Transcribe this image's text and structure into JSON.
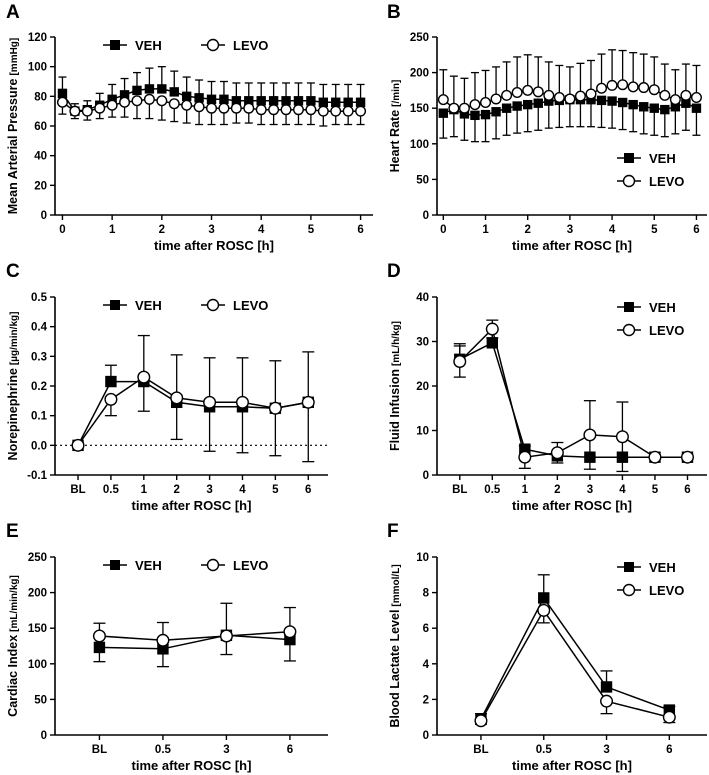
{
  "figure": {
    "colors": {
      "veh": "#000000",
      "levo": "#ffffff",
      "axis": "#000000"
    }
  },
  "chart_data": [
    {
      "panel": "A",
      "type": "line",
      "xlabel": "time after ROSC [h]",
      "ylabel": "Mean Arterial Pressure",
      "yunit": "[mmHg]",
      "ylim": [
        0,
        120
      ],
      "yticks": [
        "0",
        "20",
        "40",
        "60",
        "80",
        "100",
        "120"
      ],
      "xlim": [
        -0.15,
        6.25
      ],
      "xtick_labels": [
        "0",
        "1",
        "2",
        "3",
        "4",
        "5",
        "6"
      ],
      "legend": {
        "layout": "row",
        "position": "top",
        "entries": [
          "VEH",
          "LEVO"
        ]
      },
      "x": [
        0,
        0.25,
        0.5,
        0.75,
        1,
        1.25,
        1.5,
        1.75,
        2,
        2.25,
        2.5,
        2.75,
        3,
        3.25,
        3.5,
        3.75,
        4,
        4.25,
        4.5,
        4.75,
        5,
        5.25,
        5.5,
        5.75,
        6
      ],
      "series": [
        {
          "name": "VEH",
          "marker": "square",
          "err_dir": "up",
          "values": [
            82,
            70,
            71,
            74,
            78,
            81,
            84,
            85,
            85,
            83,
            80,
            79,
            78,
            78,
            77,
            77,
            77,
            77,
            77,
            77,
            77,
            76,
            76,
            76,
            76
          ],
          "errors": [
            11,
            5,
            6,
            8,
            10,
            11,
            12,
            14,
            15,
            14,
            13,
            12,
            12,
            12,
            12,
            12,
            12,
            12,
            12,
            12,
            12,
            12,
            12,
            12,
            12
          ]
        },
        {
          "name": "LEVO",
          "marker": "circle",
          "err_dir": "down",
          "values": [
            76,
            70,
            70,
            72,
            74,
            76,
            77,
            78,
            77,
            75,
            74,
            73,
            72,
            72,
            72,
            72,
            71,
            71,
            71,
            71,
            71,
            70,
            70,
            70,
            70
          ],
          "errors": [
            8,
            5,
            6,
            7,
            8,
            10,
            12,
            13,
            13,
            12,
            12,
            12,
            11,
            11,
            10,
            10,
            10,
            10,
            10,
            10,
            10,
            10,
            9,
            9,
            9
          ]
        }
      ]
    },
    {
      "panel": "B",
      "type": "line",
      "xlabel": "time after ROSC [h]",
      "ylabel": "Heart Rate",
      "yunit": "[/min]",
      "ylim": [
        0,
        250
      ],
      "yticks": [
        "0",
        "50",
        "100",
        "150",
        "200",
        "250"
      ],
      "xlim": [
        -0.15,
        6.25
      ],
      "xtick_labels": [
        "0",
        "1",
        "2",
        "3",
        "4",
        "5",
        "6"
      ],
      "legend": {
        "layout": "column",
        "position": "bottom-right",
        "entries": [
          "VEH",
          "LEVO"
        ]
      },
      "x": [
        0,
        0.25,
        0.5,
        0.75,
        1,
        1.25,
        1.5,
        1.75,
        2,
        2.25,
        2.5,
        2.75,
        3,
        3.25,
        3.5,
        3.75,
        4,
        4.25,
        4.5,
        4.75,
        5,
        5.25,
        5.5,
        5.75,
        6
      ],
      "series": [
        {
          "name": "VEH",
          "marker": "square",
          "err_dir": "down",
          "values": [
            143,
            148,
            142,
            140,
            141,
            145,
            150,
            153,
            155,
            157,
            160,
            161,
            162,
            162,
            162,
            161,
            160,
            158,
            155,
            152,
            150,
            148,
            152,
            157,
            150
          ],
          "errors": [
            35,
            38,
            37,
            37,
            38,
            38,
            38,
            38,
            38,
            38,
            38,
            38,
            38,
            38,
            38,
            38,
            38,
            38,
            38,
            38,
            38,
            38,
            38,
            38,
            38
          ]
        },
        {
          "name": "LEVO",
          "marker": "circle",
          "err_dir": "up",
          "values": [
            162,
            150,
            150,
            155,
            158,
            163,
            168,
            172,
            175,
            173,
            168,
            165,
            163,
            167,
            170,
            178,
            182,
            183,
            180,
            179,
            176,
            168,
            162,
            168,
            165
          ],
          "errors": [
            42,
            45,
            42,
            45,
            45,
            45,
            47,
            50,
            50,
            49,
            47,
            45,
            45,
            46,
            47,
            48,
            50,
            48,
            48,
            47,
            46,
            44,
            42,
            44,
            45
          ]
        }
      ]
    },
    {
      "panel": "C",
      "type": "line",
      "xlabel": "time after ROSC [h]",
      "ylabel": "Norepinephrine",
      "yunit": "[µg/min/kg]",
      "ylim": [
        -0.1,
        0.5
      ],
      "yticks": [
        "-0.1",
        "0.0",
        "0.1",
        "0.2",
        "0.3",
        "0.4",
        "0.5"
      ],
      "xlim": [
        -0.7,
        7.6
      ],
      "xtick_labels": [
        "BL",
        "0.5",
        "1",
        "2",
        "3",
        "4",
        "5",
        "6"
      ],
      "reference_line": 0,
      "legend": {
        "layout": "row",
        "position": "top",
        "entries": [
          "VEH",
          "LEVO"
        ]
      },
      "x": [
        0,
        1,
        2,
        3,
        4,
        5,
        6,
        7
      ],
      "series": [
        {
          "name": "VEH",
          "marker": "square",
          "err_dir": "up",
          "values": [
            0,
            0.215,
            0.215,
            0.145,
            0.13,
            0.13,
            0.125,
            0.145
          ],
          "errors": [
            0,
            0.055,
            0.155,
            0.16,
            0.165,
            0.165,
            0.16,
            0.17
          ]
        },
        {
          "name": "LEVO",
          "marker": "circle",
          "err_dir": "down",
          "values": [
            0,
            0.155,
            0.23,
            0.16,
            0.145,
            0.145,
            0.125,
            0.145
          ],
          "errors": [
            0,
            0.055,
            0.115,
            0.14,
            0.165,
            0.17,
            0.16,
            0.2
          ]
        }
      ]
    },
    {
      "panel": "D",
      "type": "line",
      "xlabel": "time after ROSC [h]",
      "ylabel": "Fluid Infusion",
      "yunit": "[mL/h/kg]",
      "ylim": [
        0,
        40
      ],
      "yticks": [
        "0",
        "10",
        "20",
        "30",
        "40"
      ],
      "xlim": [
        -0.7,
        7.6
      ],
      "xtick_labels": [
        "BL",
        "0.5",
        "1",
        "2",
        "3",
        "4",
        "5",
        "6"
      ],
      "legend": {
        "layout": "column",
        "position": "top-right",
        "entries": [
          "VEH",
          "LEVO"
        ]
      },
      "x": [
        0,
        1,
        2,
        3,
        4,
        5,
        6,
        7
      ],
      "series": [
        {
          "name": "VEH",
          "marker": "square",
          "err_dir": "up",
          "values": [
            26,
            29.7,
            5.8,
            4.3,
            4.0,
            4.0,
            4.0,
            4.0
          ],
          "errors": [
            3.5,
            3.0,
            0,
            0,
            0,
            0,
            0,
            0
          ]
        },
        {
          "name": "LEVO",
          "marker": "circle",
          "err_dir": "both",
          "values": [
            25.5,
            32.8,
            4.0,
            5.0,
            9.0,
            8.6,
            4.0,
            4.0
          ],
          "errors": [
            3.5,
            2.0,
            2.5,
            2.3,
            7.7,
            7.8,
            0,
            0
          ]
        }
      ]
    },
    {
      "panel": "E",
      "type": "line",
      "xlabel": "time after ROSC [h]",
      "ylabel": "Cardiac Index",
      "yunit": "[mL/min/kg]",
      "ylim": [
        0,
        250
      ],
      "yticks": [
        "0",
        "50",
        "100",
        "150",
        "200",
        "250"
      ],
      "xlim": [
        -0.7,
        3.6
      ],
      "xtick_labels": [
        "BL",
        "0.5",
        "3",
        "6"
      ],
      "legend": {
        "layout": "row",
        "position": "top",
        "entries": [
          "VEH",
          "LEVO"
        ]
      },
      "x": [
        0,
        1,
        2,
        3
      ],
      "series": [
        {
          "name": "VEH",
          "marker": "square",
          "err_dir": "down",
          "values": [
            123,
            121,
            140,
            134
          ],
          "errors": [
            20,
            25,
            27,
            30
          ]
        },
        {
          "name": "LEVO",
          "marker": "circle",
          "err_dir": "up",
          "values": [
            139,
            133,
            139,
            145
          ],
          "errors": [
            18,
            25,
            46,
            34
          ]
        }
      ]
    },
    {
      "panel": "F",
      "type": "line",
      "xlabel": "time after ROSC [h]",
      "ylabel": "Blood Lactate Level",
      "yunit": "[mmol/L]",
      "ylim": [
        0,
        10
      ],
      "yticks": [
        "0",
        "2",
        "4",
        "6",
        "8",
        "10"
      ],
      "xlim": [
        -0.7,
        3.6
      ],
      "xtick_labels": [
        "BL",
        "0.5",
        "3",
        "6"
      ],
      "legend": {
        "layout": "column",
        "position": "top-right",
        "entries": [
          "VEH",
          "LEVO"
        ]
      },
      "x": [
        0,
        1,
        2,
        3
      ],
      "series": [
        {
          "name": "VEH",
          "marker": "square",
          "err_dir": "up",
          "values": [
            0.9,
            7.7,
            2.7,
            1.4
          ],
          "errors": [
            0.3,
            1.3,
            0.9,
            0.2
          ]
        },
        {
          "name": "LEVO",
          "marker": "circle",
          "err_dir": "down",
          "values": [
            0.8,
            7.0,
            1.9,
            1.0
          ],
          "errors": [
            0.2,
            0.7,
            0.7,
            0.3
          ]
        }
      ]
    }
  ]
}
